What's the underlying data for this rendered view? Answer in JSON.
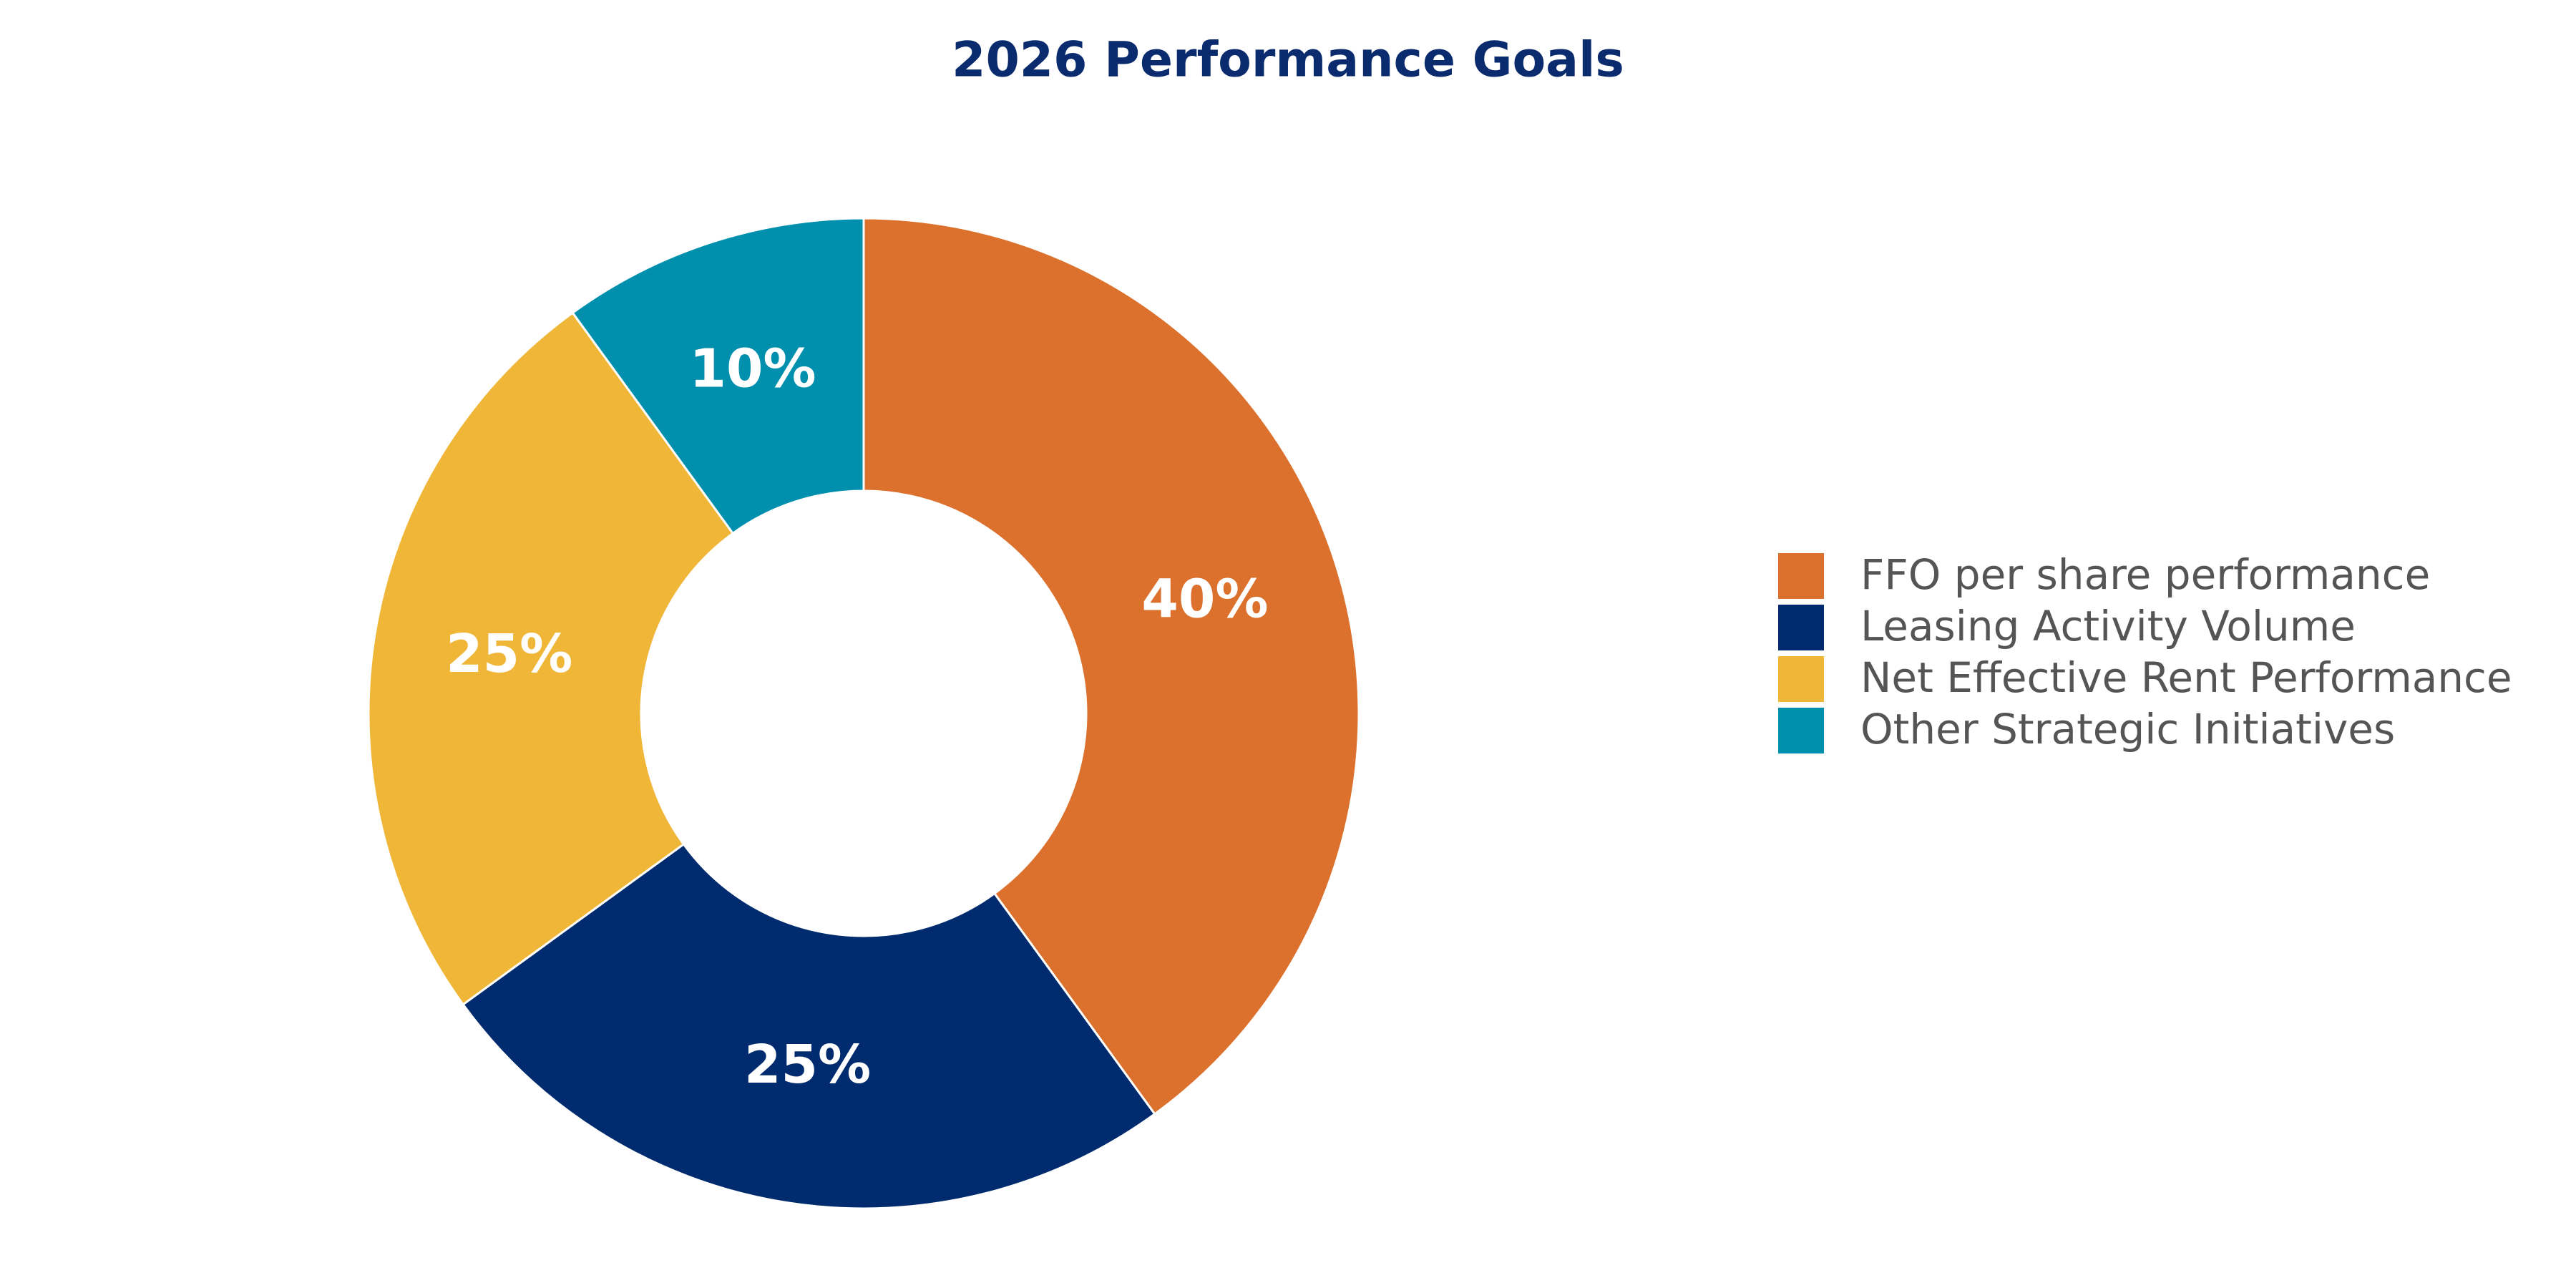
{
  "chart_data": {
    "type": "donut",
    "title": "2026 Performance Goals",
    "categories": [
      "FFO per share performance",
      "Leasing Activity Volume",
      "Net Effective Rent Performance",
      "Other Strategic Initiatives"
    ],
    "values": [
      40,
      25,
      25,
      10
    ],
    "value_labels": [
      "40%",
      "25%",
      "25%",
      "10%"
    ],
    "colors": [
      "#dc702d",
      "#002b6e",
      "#f0b638",
      "#0090ae"
    ],
    "legend": "right"
  }
}
